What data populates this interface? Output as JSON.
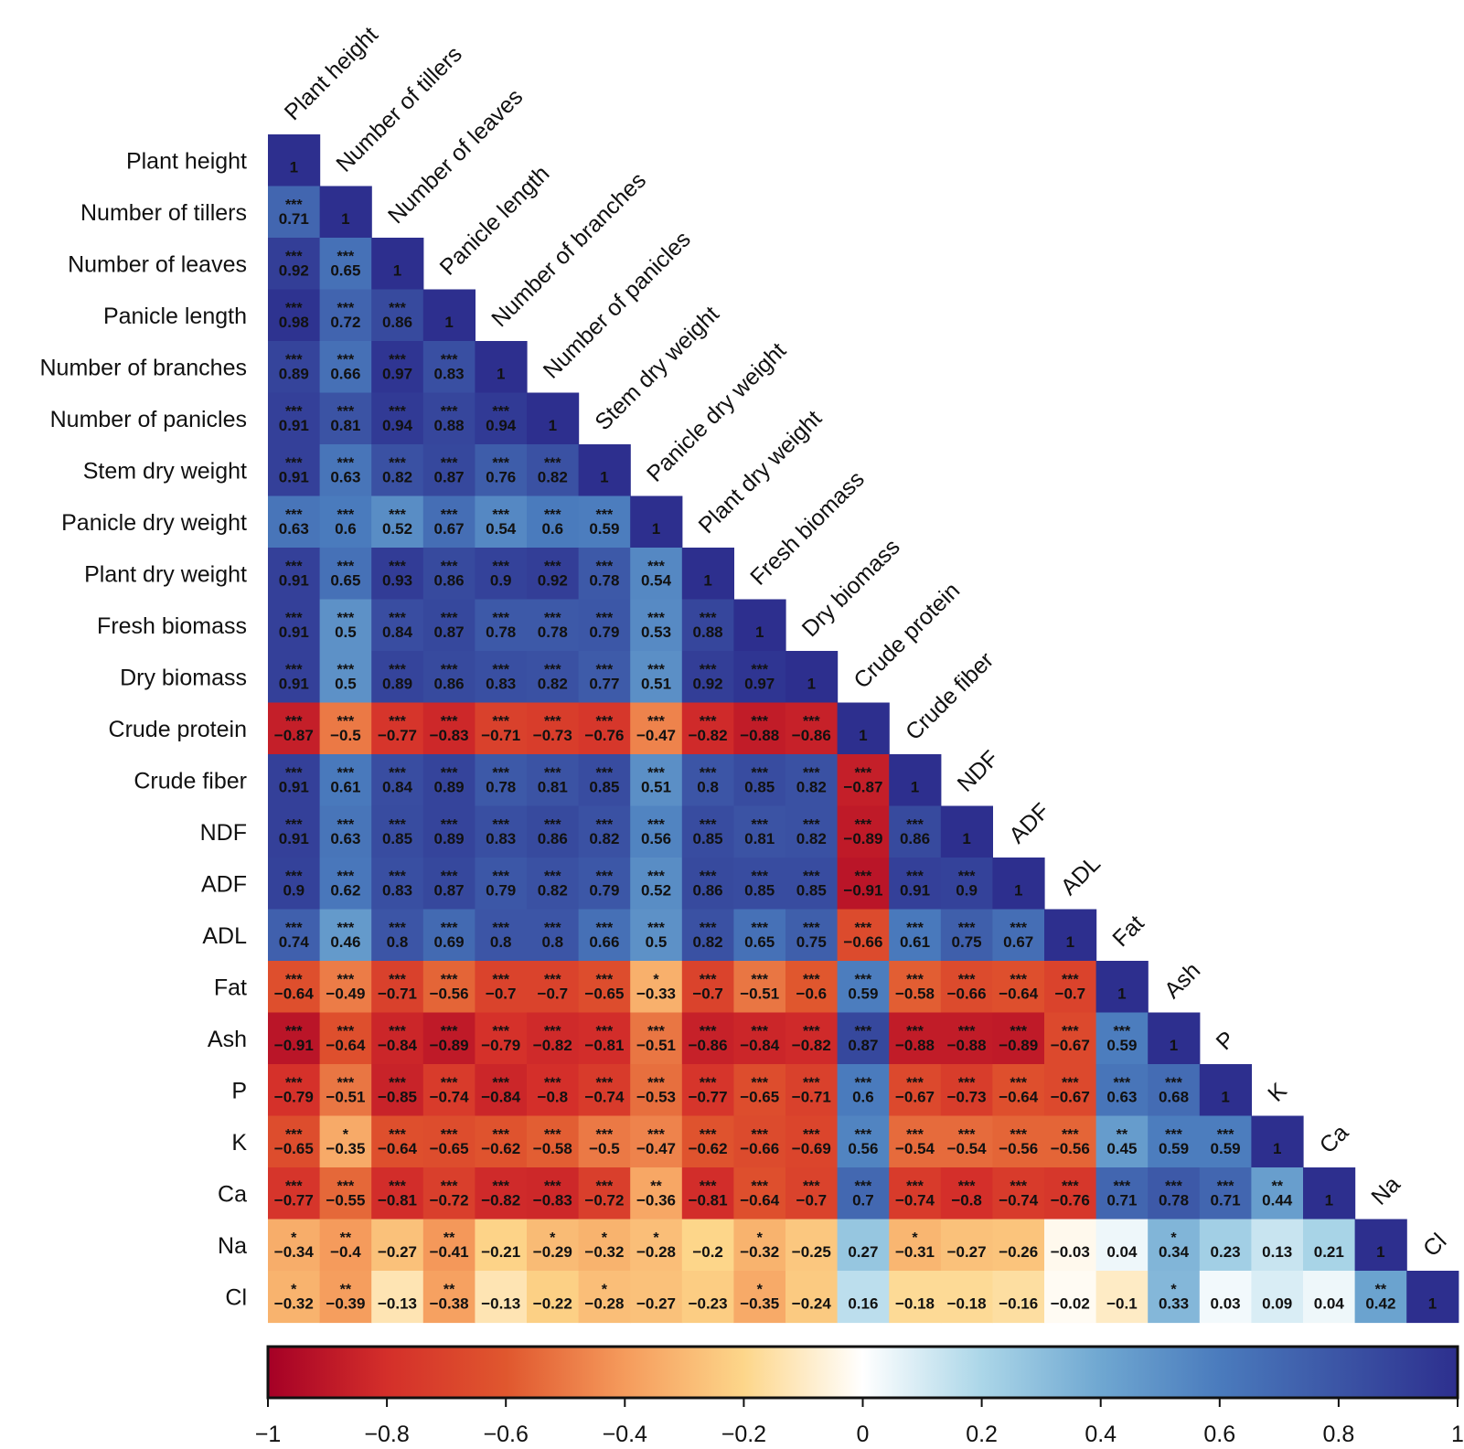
{
  "chart_data": {
    "type": "heatmap",
    "variables": [
      "Plant height",
      "Number of tillers",
      "Number of leaves",
      "Panicle length",
      "Number of branches",
      "Number of panicles",
      "Stem dry weight",
      "Panicle dry weight",
      "Plant dry weight",
      "Fresh biomass",
      "Dry biomass",
      "Crude protein",
      "Crude fiber",
      "NDF",
      "ADF",
      "ADL",
      "Fat",
      "Ash",
      "P",
      "K",
      "Ca",
      "Na",
      "Cl"
    ],
    "values": [
      [
        "1"
      ],
      [
        "0.71",
        "1"
      ],
      [
        "0.92",
        "0.65",
        "1"
      ],
      [
        "0.98",
        "0.72",
        "0.86",
        "1"
      ],
      [
        "0.89",
        "0.66",
        "0.97",
        "0.83",
        "1"
      ],
      [
        "0.91",
        "0.81",
        "0.94",
        "0.88",
        "0.94",
        "1"
      ],
      [
        "0.91",
        "0.63",
        "0.82",
        "0.87",
        "0.76",
        "0.82",
        "1"
      ],
      [
        "0.63",
        "0.6",
        "0.52",
        "0.67",
        "0.54",
        "0.6",
        "0.59",
        "1"
      ],
      [
        "0.91",
        "0.65",
        "0.93",
        "0.86",
        "0.9",
        "0.92",
        "0.78",
        "0.54",
        "1"
      ],
      [
        "0.91",
        "0.5",
        "0.84",
        "0.87",
        "0.78",
        "0.78",
        "0.79",
        "0.53",
        "0.88",
        "1"
      ],
      [
        "0.91",
        "0.5",
        "0.89",
        "0.86",
        "0.83",
        "0.82",
        "0.77",
        "0.51",
        "0.92",
        "0.97",
        "1"
      ],
      [
        "−0.87",
        "−0.5",
        "−0.77",
        "−0.83",
        "−0.71",
        "−0.73",
        "−0.76",
        "−0.47",
        "−0.82",
        "−0.88",
        "−0.86",
        "1"
      ],
      [
        "0.91",
        "0.61",
        "0.84",
        "0.89",
        "0.78",
        "0.81",
        "0.85",
        "0.51",
        "0.8",
        "0.85",
        "0.82",
        "−0.87",
        "1"
      ],
      [
        "0.91",
        "0.63",
        "0.85",
        "0.89",
        "0.83",
        "0.86",
        "0.82",
        "0.56",
        "0.85",
        "0.81",
        "0.82",
        "−0.89",
        "0.86",
        "1"
      ],
      [
        "0.9",
        "0.62",
        "0.83",
        "0.87",
        "0.79",
        "0.82",
        "0.79",
        "0.52",
        "0.86",
        "0.85",
        "0.85",
        "−0.91",
        "0.91",
        "0.9",
        "1"
      ],
      [
        "0.74",
        "0.46",
        "0.8",
        "0.69",
        "0.8",
        "0.8",
        "0.66",
        "0.5",
        "0.82",
        "0.65",
        "0.75",
        "−0.66",
        "0.61",
        "0.75",
        "0.67",
        "1"
      ],
      [
        "−0.64",
        "−0.49",
        "−0.71",
        "−0.56",
        "−0.7",
        "−0.7",
        "−0.65",
        "−0.33",
        "−0.7",
        "−0.51",
        "−0.6",
        "0.59",
        "−0.58",
        "−0.66",
        "−0.64",
        "−0.7",
        "1"
      ],
      [
        "−0.91",
        "−0.64",
        "−0.84",
        "−0.89",
        "−0.79",
        "−0.82",
        "−0.81",
        "−0.51",
        "−0.86",
        "−0.84",
        "−0.82",
        "0.87",
        "−0.88",
        "−0.88",
        "−0.89",
        "−0.67",
        "0.59",
        "1"
      ],
      [
        "−0.79",
        "−0.51",
        "−0.85",
        "−0.74",
        "−0.84",
        "−0.8",
        "−0.74",
        "−0.53",
        "−0.77",
        "−0.65",
        "−0.71",
        "0.6",
        "−0.67",
        "−0.73",
        "−0.64",
        "−0.67",
        "0.63",
        "0.68",
        "1"
      ],
      [
        "−0.65",
        "−0.35",
        "−0.64",
        "−0.65",
        "−0.62",
        "−0.58",
        "−0.5",
        "−0.47",
        "−0.62",
        "−0.66",
        "−0.69",
        "0.56",
        "−0.54",
        "−0.54",
        "−0.56",
        "−0.56",
        "0.45",
        "0.59",
        "0.59",
        "1"
      ],
      [
        "−0.77",
        "−0.55",
        "−0.81",
        "−0.72",
        "−0.82",
        "−0.83",
        "−0.72",
        "−0.36",
        "−0.81",
        "−0.64",
        "−0.7",
        "0.7",
        "−0.74",
        "−0.8",
        "−0.74",
        "−0.76",
        "0.71",
        "0.78",
        "0.71",
        "0.44",
        "1"
      ],
      [
        "−0.34",
        "−0.4",
        "−0.27",
        "−0.41",
        "−0.21",
        "−0.29",
        "−0.32",
        "−0.28",
        "−0.2",
        "−0.32",
        "−0.25",
        "0.27",
        "−0.31",
        "−0.27",
        "−0.26",
        "−0.03",
        "0.04",
        "0.34",
        "0.23",
        "0.13",
        "0.21",
        "1"
      ],
      [
        "−0.32",
        "−0.39",
        "−0.13",
        "−0.38",
        "−0.13",
        "−0.22",
        "−0.28",
        "−0.27",
        "−0.23",
        "−0.35",
        "−0.24",
        "0.16",
        "−0.18",
        "−0.18",
        "−0.16",
        "−0.02",
        "−0.1",
        "0.33",
        "0.03",
        "0.09",
        "0.04",
        "0.42",
        "1"
      ]
    ],
    "significance": [
      [
        ""
      ],
      [
        "***",
        ""
      ],
      [
        "***",
        "***",
        ""
      ],
      [
        "***",
        "***",
        "***",
        ""
      ],
      [
        "***",
        "***",
        "***",
        "***",
        ""
      ],
      [
        "***",
        "***",
        "***",
        "***",
        "***",
        ""
      ],
      [
        "***",
        "***",
        "***",
        "***",
        "***",
        "***",
        ""
      ],
      [
        "***",
        "***",
        "***",
        "***",
        "***",
        "***",
        "***",
        ""
      ],
      [
        "***",
        "***",
        "***",
        "***",
        "***",
        "***",
        "***",
        "***",
        ""
      ],
      [
        "***",
        "***",
        "***",
        "***",
        "***",
        "***",
        "***",
        "***",
        "***",
        ""
      ],
      [
        "***",
        "***",
        "***",
        "***",
        "***",
        "***",
        "***",
        "***",
        "***",
        "***",
        ""
      ],
      [
        "***",
        "***",
        "***",
        "***",
        "***",
        "***",
        "***",
        "***",
        "***",
        "***",
        "***",
        ""
      ],
      [
        "***",
        "***",
        "***",
        "***",
        "***",
        "***",
        "***",
        "***",
        "***",
        "***",
        "***",
        "***",
        ""
      ],
      [
        "***",
        "***",
        "***",
        "***",
        "***",
        "***",
        "***",
        "***",
        "***",
        "***",
        "***",
        "***",
        "***",
        ""
      ],
      [
        "***",
        "***",
        "***",
        "***",
        "***",
        "***",
        "***",
        "***",
        "***",
        "***",
        "***",
        "***",
        "***",
        "***",
        ""
      ],
      [
        "***",
        "***",
        "***",
        "***",
        "***",
        "***",
        "***",
        "***",
        "***",
        "***",
        "***",
        "***",
        "***",
        "***",
        "***",
        ""
      ],
      [
        "***",
        "***",
        "***",
        "***",
        "***",
        "***",
        "***",
        "*",
        "***",
        "***",
        "***",
        "***",
        "***",
        "***",
        "***",
        "***",
        ""
      ],
      [
        "***",
        "***",
        "***",
        "***",
        "***",
        "***",
        "***",
        "***",
        "***",
        "***",
        "***",
        "***",
        "***",
        "***",
        "***",
        "***",
        "***",
        ""
      ],
      [
        "***",
        "***",
        "***",
        "***",
        "***",
        "***",
        "***",
        "***",
        "***",
        "***",
        "***",
        "***",
        "***",
        "***",
        "***",
        "***",
        "***",
        "***",
        ""
      ],
      [
        "***",
        "*",
        "***",
        "***",
        "***",
        "***",
        "***",
        "***",
        "***",
        "***",
        "***",
        "***",
        "***",
        "***",
        "***",
        "***",
        "**",
        "***",
        "***",
        ""
      ],
      [
        "***",
        "***",
        "***",
        "***",
        "***",
        "***",
        "***",
        "**",
        "***",
        "***",
        "***",
        "***",
        "***",
        "***",
        "***",
        "***",
        "***",
        "***",
        "***",
        "**",
        ""
      ],
      [
        "*",
        "**",
        "",
        "**",
        "",
        "*",
        "*",
        "*",
        "",
        "*",
        "",
        "",
        "*",
        "",
        "",
        "",
        "",
        "*",
        "",
        "",
        "",
        ""
      ],
      [
        "*",
        "**",
        "",
        "**",
        "",
        "",
        "*",
        "",
        "",
        "*",
        "",
        "",
        "",
        "",
        "",
        "",
        "",
        "*",
        "",
        "",
        "",
        "**",
        ""
      ]
    ],
    "colorbar": {
      "ticks": [
        "−1",
        "−0.8",
        "−0.6",
        "−0.4",
        "−0.2",
        "0",
        "0.2",
        "0.4",
        "0.6",
        "0.8",
        "1"
      ],
      "range": [
        -1,
        1
      ],
      "orientation": "horizontal"
    },
    "colors": {
      "neg_strong": "#a50026",
      "neg_mid": "#e0572e",
      "neg_light": "#fdd68a",
      "zero": "#ffffff",
      "pos_light": "#abd6e8",
      "pos_mid": "#4a7bbd",
      "pos_strong": "#2d2f8e"
    }
  }
}
